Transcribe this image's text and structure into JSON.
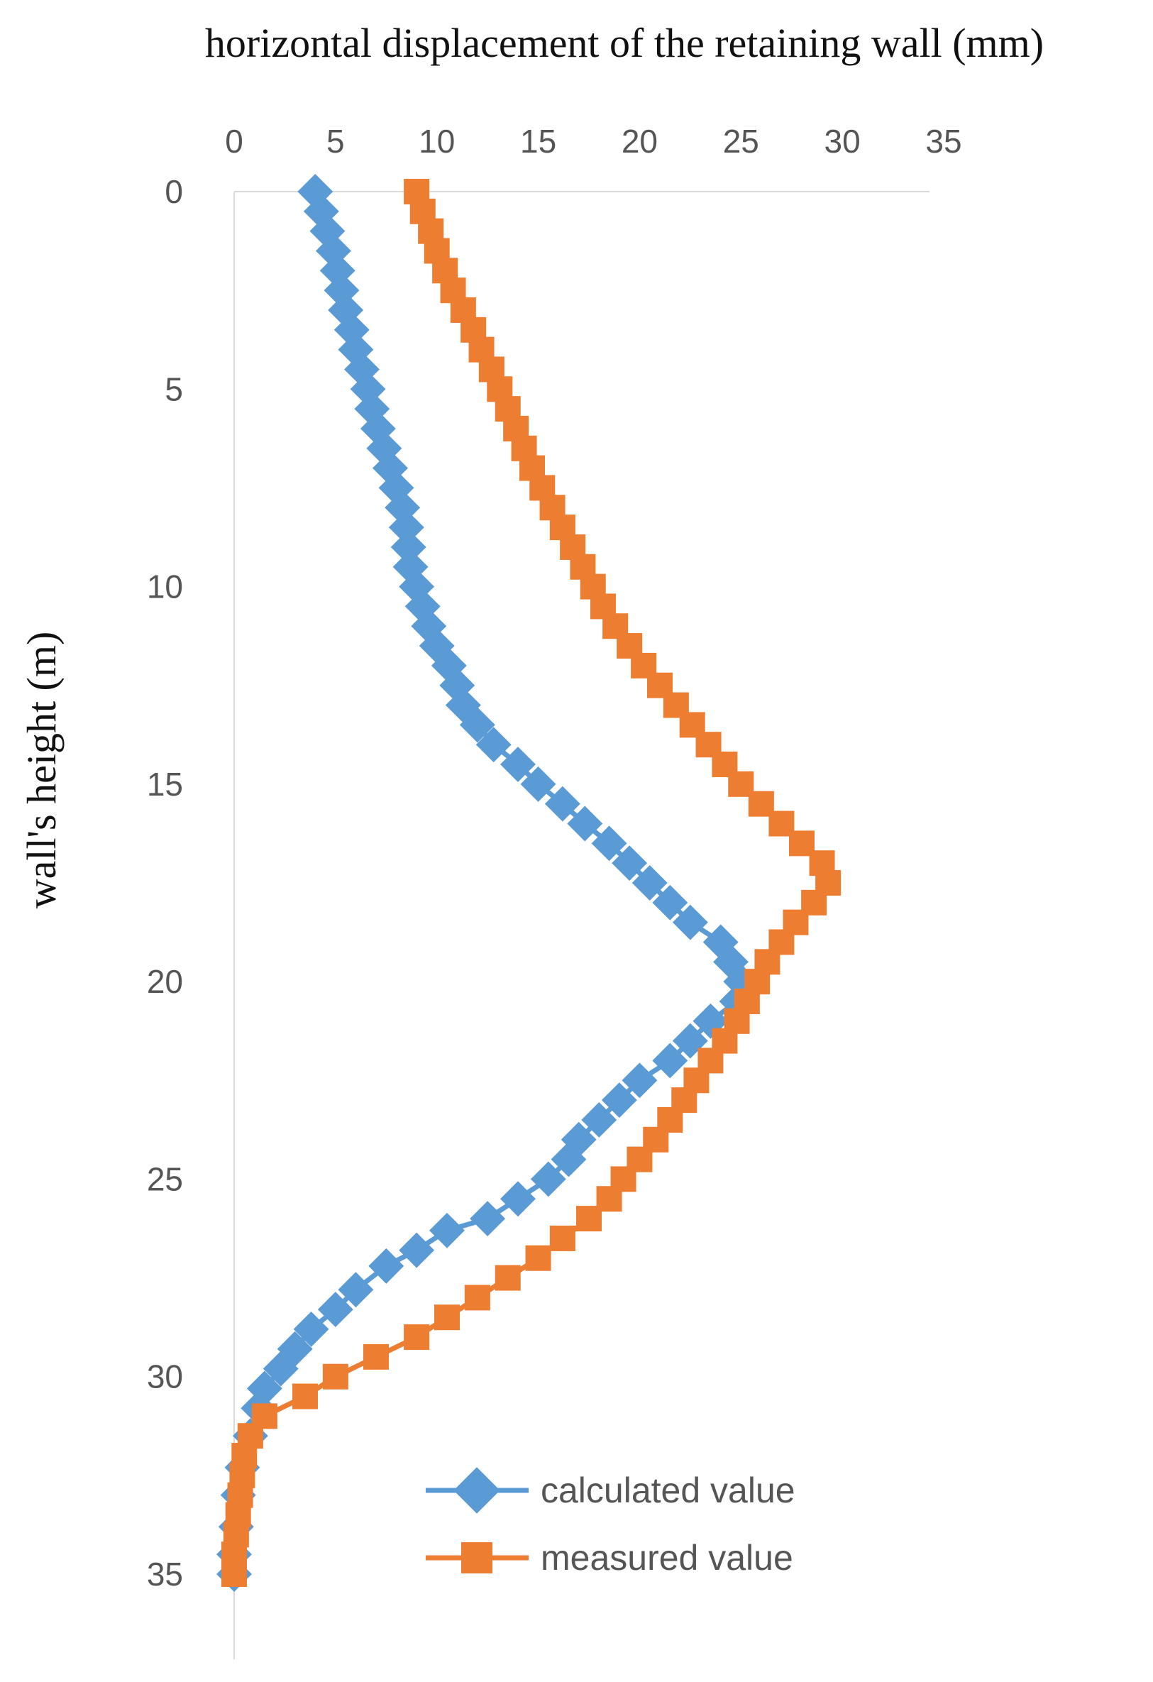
{
  "chart_data": {
    "type": "line",
    "title": "horizontal displacement of the retaining wall (mm)",
    "xlabel": "horizontal displacement of the retaining wall (mm)",
    "ylabel": "wall's height (m)",
    "x_axis_position": "top",
    "y_axis_inverted": true,
    "xlim": [
      0,
      35
    ],
    "ylim": [
      0,
      35
    ],
    "xticks": [
      0,
      5,
      10,
      15,
      20,
      25,
      30,
      35
    ],
    "yticks": [
      0,
      5,
      10,
      15,
      20,
      25,
      30,
      35
    ],
    "grid": false,
    "legend_position": "bottom-right",
    "series": [
      {
        "name": "calculated value",
        "marker": "diamond",
        "color": "#5B9BD5",
        "points": [
          [
            4.0,
            0
          ],
          [
            4.3,
            0.5
          ],
          [
            4.6,
            1.0
          ],
          [
            4.9,
            1.5
          ],
          [
            5.1,
            2.0
          ],
          [
            5.3,
            2.5
          ],
          [
            5.5,
            3.0
          ],
          [
            5.8,
            3.5
          ],
          [
            6.0,
            4.0
          ],
          [
            6.3,
            4.5
          ],
          [
            6.6,
            5.0
          ],
          [
            6.8,
            5.5
          ],
          [
            7.1,
            6.0
          ],
          [
            7.4,
            6.5
          ],
          [
            7.7,
            7.0
          ],
          [
            8.0,
            7.5
          ],
          [
            8.3,
            8.0
          ],
          [
            8.5,
            8.5
          ],
          [
            8.6,
            9.0
          ],
          [
            8.7,
            9.5
          ],
          [
            9.0,
            10.0
          ],
          [
            9.3,
            10.5
          ],
          [
            9.6,
            11.0
          ],
          [
            10.0,
            11.5
          ],
          [
            10.6,
            12.0
          ],
          [
            11.0,
            12.5
          ],
          [
            11.3,
            13.0
          ],
          [
            12.0,
            13.5
          ],
          [
            12.8,
            14.0
          ],
          [
            14.0,
            14.5
          ],
          [
            15.0,
            15.0
          ],
          [
            16.2,
            15.5
          ],
          [
            17.3,
            16.0
          ],
          [
            18.5,
            16.5
          ],
          [
            19.5,
            17.0
          ],
          [
            20.5,
            17.5
          ],
          [
            21.5,
            18.0
          ],
          [
            22.5,
            18.5
          ],
          [
            24.0,
            19.0
          ],
          [
            24.5,
            19.5
          ],
          [
            25.0,
            20.0
          ],
          [
            24.8,
            20.5
          ],
          [
            23.5,
            21.0
          ],
          [
            22.5,
            21.5
          ],
          [
            21.5,
            22.0
          ],
          [
            20.0,
            22.5
          ],
          [
            19.0,
            23.0
          ],
          [
            18.0,
            23.5
          ],
          [
            17.0,
            24.0
          ],
          [
            16.5,
            24.5
          ],
          [
            15.5,
            25.0
          ],
          [
            14.0,
            25.5
          ],
          [
            12.5,
            26.0
          ],
          [
            10.5,
            26.3
          ],
          [
            9.0,
            26.8
          ],
          [
            7.5,
            27.2
          ],
          [
            6.0,
            27.8
          ],
          [
            5.0,
            28.3
          ],
          [
            3.8,
            28.8
          ],
          [
            3.0,
            29.3
          ],
          [
            2.3,
            29.8
          ],
          [
            1.5,
            30.3
          ],
          [
            1.2,
            30.8
          ],
          [
            0.8,
            31.5
          ],
          [
            0.4,
            32.3
          ],
          [
            0.2,
            33.0
          ],
          [
            0.1,
            33.8
          ],
          [
            0.0,
            34.5
          ],
          [
            0.0,
            35.0
          ]
        ]
      },
      {
        "name": "measured value",
        "marker": "square",
        "color": "#ED7D31",
        "points": [
          [
            9.0,
            0
          ],
          [
            9.3,
            0.5
          ],
          [
            9.7,
            1.0
          ],
          [
            10.0,
            1.5
          ],
          [
            10.4,
            2.0
          ],
          [
            10.8,
            2.5
          ],
          [
            11.3,
            3.0
          ],
          [
            11.8,
            3.5
          ],
          [
            12.2,
            4.0
          ],
          [
            12.7,
            4.5
          ],
          [
            13.1,
            5.0
          ],
          [
            13.5,
            5.5
          ],
          [
            13.9,
            6.0
          ],
          [
            14.3,
            6.5
          ],
          [
            14.7,
            7.0
          ],
          [
            15.2,
            7.5
          ],
          [
            15.7,
            8.0
          ],
          [
            16.2,
            8.5
          ],
          [
            16.7,
            9.0
          ],
          [
            17.2,
            9.5
          ],
          [
            17.7,
            10.0
          ],
          [
            18.2,
            10.5
          ],
          [
            18.8,
            11.0
          ],
          [
            19.5,
            11.5
          ],
          [
            20.2,
            12.0
          ],
          [
            21.0,
            12.5
          ],
          [
            21.8,
            13.0
          ],
          [
            22.6,
            13.5
          ],
          [
            23.4,
            14.0
          ],
          [
            24.2,
            14.5
          ],
          [
            25.0,
            15.0
          ],
          [
            26.0,
            15.5
          ],
          [
            27.0,
            16.0
          ],
          [
            28.0,
            16.5
          ],
          [
            29.0,
            17.0
          ],
          [
            29.3,
            17.5
          ],
          [
            28.6,
            18.0
          ],
          [
            27.7,
            18.5
          ],
          [
            27.0,
            19.0
          ],
          [
            26.3,
            19.5
          ],
          [
            25.8,
            20.0
          ],
          [
            25.3,
            20.5
          ],
          [
            24.8,
            21.0
          ],
          [
            24.2,
            21.5
          ],
          [
            23.5,
            22.0
          ],
          [
            22.8,
            22.5
          ],
          [
            22.2,
            23.0
          ],
          [
            21.5,
            23.5
          ],
          [
            20.8,
            24.0
          ],
          [
            20.0,
            24.5
          ],
          [
            19.2,
            25.0
          ],
          [
            18.5,
            25.5
          ],
          [
            17.5,
            26.0
          ],
          [
            16.2,
            26.5
          ],
          [
            15.0,
            27.0
          ],
          [
            13.5,
            27.5
          ],
          [
            12.0,
            28.0
          ],
          [
            10.5,
            28.5
          ],
          [
            9.0,
            29.0
          ],
          [
            7.0,
            29.5
          ],
          [
            5.0,
            30.0
          ],
          [
            3.5,
            30.5
          ],
          [
            1.5,
            31.0
          ],
          [
            0.8,
            31.5
          ],
          [
            0.5,
            32.0
          ],
          [
            0.4,
            32.5
          ],
          [
            0.3,
            33.0
          ],
          [
            0.2,
            33.5
          ],
          [
            0.1,
            34.0
          ],
          [
            0.0,
            34.5
          ],
          [
            0.0,
            35.0
          ]
        ]
      }
    ]
  }
}
